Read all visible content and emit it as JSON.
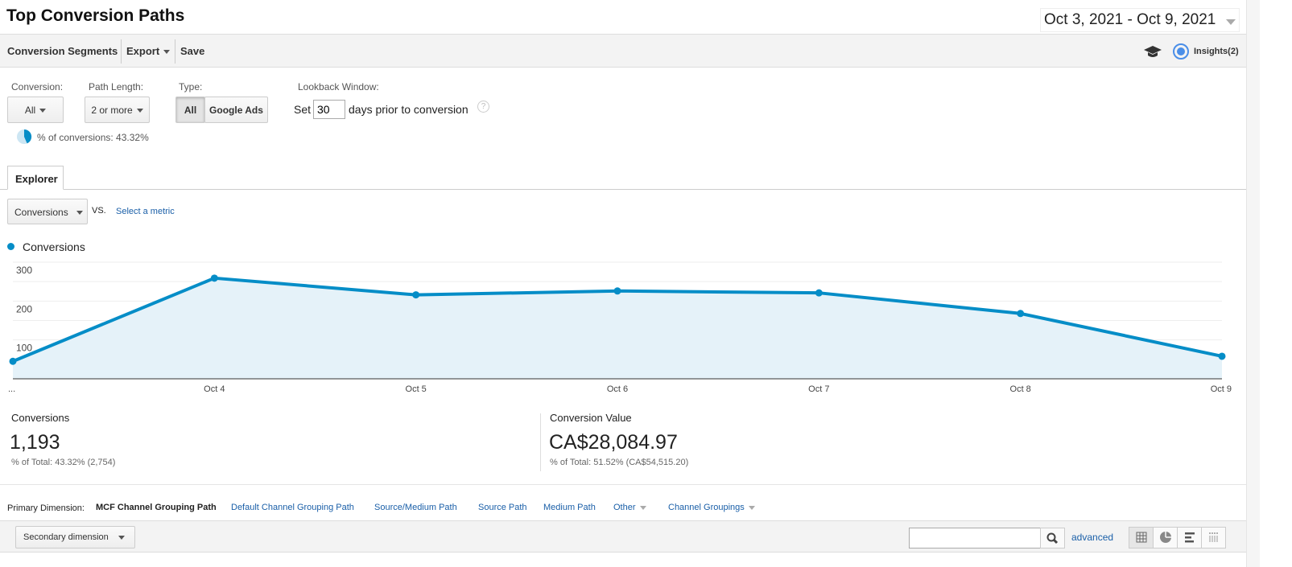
{
  "header": {
    "title": "Top Conversion Paths",
    "date_range": "Oct 3, 2021 - Oct 9, 2021"
  },
  "toolbar": {
    "conversion_segments": "Conversion Segments",
    "export": "Export",
    "save": "Save",
    "insights": "Insights(2)"
  },
  "filters": {
    "conversion_label": "Conversion:",
    "conversion_value": "All",
    "path_length_label": "Path Length:",
    "path_length_value": "2 or more",
    "type_label": "Type:",
    "type_options": [
      "All",
      "Google Ads"
    ],
    "type_selected": "All",
    "lookback_label": "Lookback Window:",
    "lookback_prefix": "Set",
    "lookback_value": "30",
    "lookback_suffix": "days prior to conversion",
    "percent_conversions": "% of conversions: 43.32%",
    "percent_value": 43.32
  },
  "tabs": {
    "explorer": "Explorer"
  },
  "metric": {
    "selected": "Conversions",
    "vs": "VS.",
    "select_metric": "Select a metric"
  },
  "colors": {
    "accent": "#058dc7",
    "link": "#1a5fa8"
  },
  "chart_data": {
    "type": "area",
    "legend": [
      "Conversions"
    ],
    "series": [
      {
        "name": "Conversions",
        "values": [
          45,
          259,
          216,
          226,
          221,
          168,
          58
        ]
      }
    ],
    "categories": [
      "...",
      "Oct 4",
      "Oct 5",
      "Oct 6",
      "Oct 7",
      "Oct 8",
      "Oct 9"
    ],
    "yticks": [
      "100",
      "200",
      "300"
    ],
    "ylim": [
      0,
      300
    ],
    "grid": true
  },
  "summary": [
    {
      "label": "Conversions",
      "value": "1,193",
      "sub": "% of Total: 43.32% (2,754)"
    },
    {
      "label": "Conversion Value",
      "value": "CA$28,084.97",
      "sub": "% of Total: 51.52% (CA$54,515.20)"
    }
  ],
  "dimensions": {
    "label": "Primary Dimension:",
    "selected": "MCF Channel Grouping Path",
    "links": [
      "Default Channel Grouping Path",
      "Source/Medium Path",
      "Source Path",
      "Medium Path"
    ],
    "other": "Other",
    "channel_groupings": "Channel Groupings"
  },
  "table_controls": {
    "secondary_dimension": "Secondary dimension",
    "search_value": "",
    "advanced": "advanced",
    "views": [
      "table-view-icon",
      "pie-view-icon",
      "bar-view-icon",
      "pivot-view-icon"
    ]
  }
}
